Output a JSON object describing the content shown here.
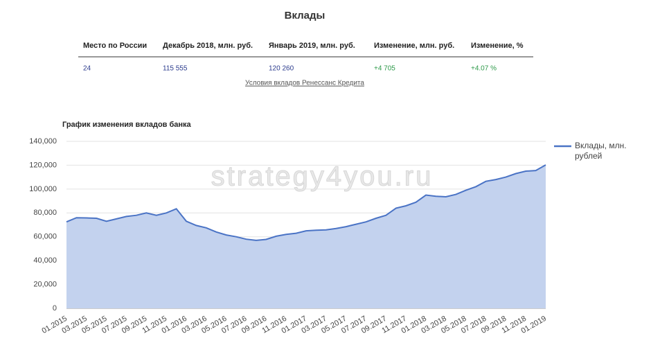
{
  "header": {
    "title": "Вклады"
  },
  "table": {
    "columns": [
      "Место по России",
      "Декабрь 2018, млн. руб.",
      "Январь 2019, млн. руб.",
      "Изменение, млн. руб.",
      "Изменение, %"
    ],
    "rows": [
      [
        "24",
        "115 555",
        "120 260",
        "+4 705",
        "+4.07 %"
      ]
    ]
  },
  "link": "Условия вкладов Ренессанс Кредита",
  "watermark": "strategy4you.ru",
  "chart_data": {
    "type": "area",
    "title": "График изменения вкладов банка",
    "categories": [
      "01.2015",
      null,
      "03.2015",
      null,
      "05.2015",
      null,
      "07.2015",
      null,
      "09.2015",
      null,
      "11.2015",
      null,
      "01.2016",
      null,
      "03.2016",
      null,
      "05.2016",
      null,
      "07.2016",
      null,
      "09.2016",
      null,
      "11.2016",
      null,
      "01.2017",
      null,
      "03.2017",
      null,
      "05.2017",
      null,
      "07.2017",
      null,
      "09.2017",
      null,
      "11.2017",
      null,
      "01.2018",
      null,
      "03.2018",
      null,
      "05.2018",
      null,
      "07.2018",
      null,
      "09.2018",
      null,
      "11.2018",
      null,
      "01.2019"
    ],
    "series": [
      {
        "name": "Вклады, млн. рублей",
        "color": "#4a73c5",
        "fill": "#c3d2ee",
        "values": [
          72500,
          76000,
          75800,
          75500,
          73000,
          75000,
          77000,
          78000,
          80000,
          78000,
          80000,
          83500,
          73000,
          69500,
          67500,
          64000,
          61500,
          60000,
          58000,
          57000,
          57800,
          60500,
          62000,
          63000,
          65000,
          65500,
          65800,
          67000,
          68500,
          70500,
          72500,
          75500,
          78000,
          84000,
          86000,
          89000,
          95000,
          94000,
          93500,
          95500,
          99000,
          102000,
          106500,
          108000,
          110000,
          113000,
          115000,
          115555,
          120260
        ]
      }
    ],
    "ylim": [
      0,
      140000
    ],
    "yticks": [
      0,
      {
        "value": 20000,
        "label": "20,000"
      },
      {
        "value": 40000,
        "label": "40,000"
      },
      {
        "value": 60000,
        "label": "60,000"
      },
      {
        "value": 80000,
        "label": "80,000"
      },
      {
        "value": 100000,
        "label": "100,000"
      },
      {
        "value": 120000,
        "label": "120,000"
      },
      {
        "value": 140000,
        "label": "140,000"
      }
    ],
    "grid": true,
    "legend": "right"
  }
}
